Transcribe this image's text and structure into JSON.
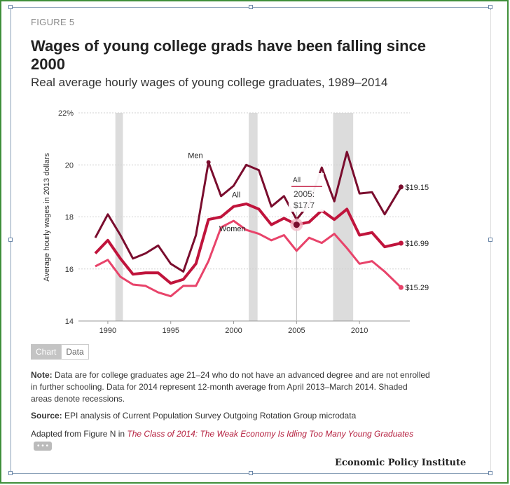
{
  "figure_label": "FIGURE 5",
  "title": "Wages of young college grads have been falling since 2000",
  "subtitle": "Real average hourly wages of young college graduates, 1989–2014",
  "tabs": {
    "chart": "Chart",
    "data": "Data"
  },
  "note_label": "Note:",
  "note_text": " Data are for college graduates age 21–24 who do not have an advanced degree and are not enrolled in further schooling. Data for 2014 represent 12-month average from April 2013–March 2014. Shaded areas denote recessions.",
  "source_label": "Source:",
  "source_text": " EPI analysis of Current Population Survey Outgoing Rotation Group microdata",
  "adapted_prefix": "Adapted from Figure N in ",
  "adapted_link": "The Class of 2014: The Weak Economy Is Idling Too Many Young Graduates",
  "more_label": "• • •",
  "publisher": "Economic Policy Institute",
  "colors": {
    "men": "#7a0d2e",
    "all": "#c0143c",
    "women": "#e8436a",
    "recession": "#dcdcdc",
    "grid": "#d0d0d0"
  },
  "chart_data": {
    "type": "line",
    "title": "Wages of young college grads have been falling since 2000",
    "xlabel": "",
    "ylabel": "Average hourly wages in 2013 dollars",
    "ylim": [
      14,
      22
    ],
    "xlim": [
      1988,
      2014
    ],
    "y_ticks": [
      "14",
      "16",
      "18",
      "20",
      "22%"
    ],
    "x_ticks": [
      "1990",
      "1995",
      "2000",
      "2005",
      "2010"
    ],
    "x": [
      1989,
      1990,
      1991,
      1992,
      1993,
      1994,
      1995,
      1996,
      1997,
      1998,
      1999,
      2000,
      2001,
      2002,
      2003,
      2004,
      2005,
      2006,
      2007,
      2008,
      2009,
      2010,
      2011,
      2012,
      2013.3
    ],
    "series": [
      {
        "name": "Men",
        "end_label": "$19.15",
        "values": [
          17.2,
          18.1,
          17.3,
          16.4,
          16.6,
          16.9,
          16.2,
          15.9,
          17.3,
          20.1,
          18.8,
          19.2,
          20.0,
          19.8,
          18.4,
          18.8,
          17.9,
          18.5,
          19.9,
          18.6,
          20.5,
          18.9,
          18.95,
          18.1,
          19.15
        ]
      },
      {
        "name": "All",
        "end_label": "$16.99",
        "values": [
          16.6,
          17.1,
          16.4,
          15.8,
          15.85,
          15.85,
          15.45,
          15.6,
          16.2,
          17.9,
          18.0,
          18.4,
          18.5,
          18.3,
          17.7,
          17.95,
          17.7,
          17.8,
          18.25,
          17.9,
          18.3,
          17.3,
          17.4,
          16.85,
          16.99
        ]
      },
      {
        "name": "Women",
        "end_label": "$15.29",
        "values": [
          16.1,
          16.35,
          15.7,
          15.4,
          15.35,
          15.1,
          14.95,
          15.35,
          15.35,
          16.3,
          17.6,
          17.85,
          17.5,
          17.35,
          17.1,
          17.3,
          16.7,
          17.2,
          17.0,
          17.35,
          16.8,
          16.2,
          16.3,
          15.9,
          15.29
        ]
      }
    ],
    "recessions": [
      [
        1990.6,
        1991.2
      ],
      [
        2001.2,
        2001.9
      ],
      [
        2007.9,
        2009.5
      ]
    ],
    "tooltip": {
      "series": "All",
      "year": "2005",
      "label": "2005:",
      "value": "$17.7",
      "y": 17.7
    },
    "grid": true,
    "legend": "inline labels"
  }
}
